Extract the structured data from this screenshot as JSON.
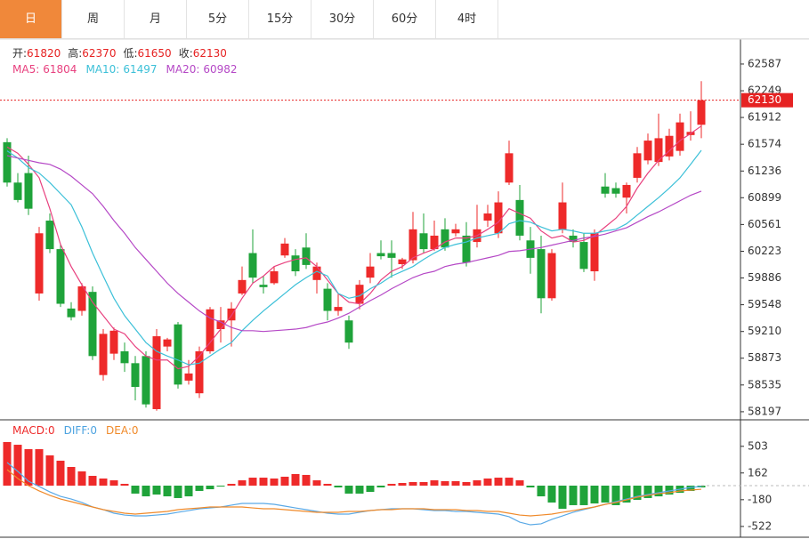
{
  "tabs": [
    "日",
    "周",
    "月",
    "5分",
    "15分",
    "30分",
    "60分",
    "4时"
  ],
  "active_tab": 0,
  "chart_data": [
    {
      "type": "candlestick",
      "up_color": "#ee2a2a",
      "down_color": "#1fa33a",
      "ohlc_labels": [
        "开:",
        "高:",
        "低:",
        "收:"
      ],
      "open": [
        61600,
        61090,
        61210,
        59690,
        60610,
        60250,
        59500,
        59470,
        59710,
        58660,
        58930,
        58960,
        58810,
        58900,
        58230,
        59020,
        59300,
        58590,
        58430,
        58960,
        59240,
        59350,
        59690,
        60200,
        59800,
        59820,
        60170,
        60170,
        60270,
        59860,
        59750,
        59470,
        59350,
        59560,
        59890,
        60200,
        60200,
        60060,
        60110,
        60450,
        60250,
        60500,
        60450,
        60420,
        60340,
        60610,
        60450,
        61090,
        60870,
        60360,
        60250,
        59630,
        60500,
        60420,
        60340,
        59970,
        61040,
        61020,
        60900,
        61150,
        61370,
        61350,
        61420,
        61490,
        61690,
        61820
      ],
      "high": [
        61650,
        61210,
        61430,
        60530,
        60700,
        60310,
        59580,
        59820,
        59780,
        59240,
        59260,
        59070,
        58900,
        58960,
        59240,
        59130,
        59330,
        58850,
        59020,
        59520,
        59520,
        59580,
        60030,
        60500,
        59910,
        60030,
        60390,
        60250,
        60450,
        60080,
        59820,
        59690,
        59410,
        59860,
        60200,
        60360,
        60360,
        60140,
        60720,
        60700,
        60610,
        60640,
        60570,
        60590,
        60810,
        60810,
        60980,
        61620,
        61060,
        60530,
        60420,
        60250,
        61090,
        60500,
        60450,
        60500,
        61210,
        61090,
        61090,
        61540,
        61710,
        61960,
        61770,
        61960,
        61990,
        62370
      ],
      "low": [
        61040,
        60840,
        60680,
        59600,
        60200,
        59520,
        59350,
        59410,
        58850,
        58590,
        58850,
        58700,
        58340,
        58250,
        58210,
        58960,
        58490,
        58540,
        58370,
        58930,
        59070,
        59020,
        59670,
        59820,
        59690,
        59800,
        60140,
        59910,
        60000,
        59690,
        59350,
        59410,
        58990,
        59490,
        59820,
        60120,
        59890,
        60000,
        60070,
        60200,
        60230,
        60230,
        60410,
        60030,
        60270,
        60530,
        60390,
        61060,
        60360,
        59940,
        59440,
        59600,
        60450,
        60270,
        59960,
        59850,
        60900,
        60900,
        60700,
        61090,
        61320,
        61300,
        61370,
        61430,
        61620,
        61650
      ],
      "close": [
        61090,
        60870,
        60760,
        60450,
        60250,
        59560,
        59390,
        59780,
        58900,
        59180,
        59220,
        58810,
        58510,
        58290,
        59150,
        59110,
        58540,
        58680,
        58960,
        59490,
        59350,
        59500,
        59860,
        59890,
        59770,
        59970,
        60320,
        59970,
        60050,
        60030,
        59470,
        59520,
        59070,
        59800,
        60030,
        60160,
        60140,
        60120,
        60500,
        60250,
        60420,
        60270,
        60500,
        60080,
        60500,
        60700,
        60840,
        61460,
        60420,
        60140,
        59630,
        60200,
        60840,
        60340,
        60000,
        60450,
        60950,
        60950,
        61060,
        61460,
        61620,
        61650,
        61680,
        61850,
        61730,
        62130
      ],
      "series": [
        {
          "name": "MA5:",
          "color": "#e8417f",
          "values": [
            61540,
            61460,
            61320,
            61150,
            60760,
            60310,
            60030,
            59800,
            59580,
            59410,
            59240,
            59180,
            59020,
            58900,
            58850,
            58850,
            58740,
            58770,
            58900,
            59070,
            59240,
            59410,
            59630,
            59820,
            59910,
            60030,
            60080,
            60120,
            60140,
            60030,
            59860,
            59690,
            59580,
            59560,
            59690,
            59860,
            59970,
            60030,
            60140,
            60200,
            60250,
            60340,
            60390,
            60390,
            60420,
            60500,
            60590,
            60760,
            60700,
            60640,
            60480,
            60390,
            60420,
            60340,
            60360,
            60420,
            60530,
            60640,
            60790,
            61020,
            61210,
            61370,
            61490,
            61620,
            61710,
            61804
          ]
        },
        {
          "name": "MA10:",
          "color": "#3cc0d8",
          "values": [
            61490,
            61400,
            61280,
            61210,
            61090,
            60950,
            60810,
            60530,
            60200,
            59910,
            59630,
            59410,
            59240,
            59070,
            58960,
            58900,
            58850,
            58790,
            58810,
            58900,
            58990,
            59070,
            59220,
            59350,
            59470,
            59580,
            59690,
            59800,
            59890,
            59970,
            59910,
            59690,
            59630,
            59660,
            59750,
            59820,
            59910,
            59970,
            60030,
            60120,
            60200,
            60270,
            60310,
            60340,
            60390,
            60420,
            60450,
            60570,
            60610,
            60590,
            60530,
            60480,
            60500,
            60480,
            60450,
            60450,
            60480,
            60500,
            60570,
            60680,
            60790,
            60900,
            61020,
            61150,
            61320,
            61497
          ]
        },
        {
          "name": "MA20:",
          "color": "#b548c6",
          "values": [
            61430,
            61400,
            61370,
            61340,
            61320,
            61260,
            61170,
            61060,
            60950,
            60790,
            60610,
            60450,
            60270,
            60120,
            59970,
            59820,
            59690,
            59580,
            59470,
            59380,
            59330,
            59260,
            59220,
            59220,
            59210,
            59220,
            59230,
            59240,
            59260,
            59300,
            59330,
            59380,
            59440,
            59520,
            59600,
            59670,
            59750,
            59820,
            59890,
            59940,
            59970,
            60030,
            60060,
            60080,
            60110,
            60140,
            60170,
            60220,
            60230,
            60250,
            60270,
            60300,
            60330,
            60360,
            60390,
            60410,
            60440,
            60480,
            60520,
            60590,
            60660,
            60720,
            60790,
            60860,
            60930,
            60982
          ]
        }
      ],
      "ylim": [
        58095,
        62901
      ],
      "yticks": [
        62587,
        62249,
        61912,
        61574,
        61236,
        60899,
        60561,
        60223,
        59886,
        59548,
        59210,
        58873,
        58535,
        58197
      ],
      "price_line": true,
      "price_line_color": "#e62222"
    },
    {
      "type": "macd",
      "up_color": "#ee2a2a",
      "down_color": "#1fa33a",
      "values": [
        558,
        523,
        467,
        467,
        387,
        319,
        239,
        182,
        125,
        91,
        68,
        23,
        -102,
        -137,
        -114,
        -137,
        -159,
        -137,
        -68,
        -46,
        -10,
        23,
        68,
        102,
        102,
        91,
        114,
        148,
        137,
        68,
        23,
        -23,
        -102,
        -102,
        -80,
        -23,
        23,
        34,
        46,
        46,
        68,
        57,
        57,
        46,
        68,
        91,
        102,
        102,
        68,
        -23,
        -137,
        -216,
        -296,
        -250,
        -250,
        -228,
        -216,
        -250,
        -216,
        -182,
        -159,
        -137,
        -114,
        -91,
        -68,
        -23
      ],
      "legend": [
        {
          "label": "MACD:",
          "value": 0,
          "color": "#ee2a2a"
        },
        {
          "label": "DIFF:",
          "value": 0,
          "color": "#4da3e0"
        },
        {
          "label": "DEA:",
          "value": 0,
          "color": "#f08a2a"
        }
      ],
      "series": [
        {
          "name": "DIFF",
          "color": "#5aa9e6",
          "values": [
            296,
            182,
            57,
            -11,
            -80,
            -137,
            -171,
            -216,
            -273,
            -307,
            -353,
            -376,
            -387,
            -387,
            -376,
            -364,
            -341,
            -319,
            -296,
            -285,
            -273,
            -250,
            -228,
            -228,
            -228,
            -239,
            -262,
            -285,
            -307,
            -330,
            -353,
            -364,
            -364,
            -341,
            -319,
            -307,
            -296,
            -296,
            -296,
            -307,
            -319,
            -319,
            -330,
            -330,
            -341,
            -353,
            -364,
            -398,
            -467,
            -501,
            -489,
            -432,
            -387,
            -341,
            -307,
            -273,
            -239,
            -205,
            -171,
            -137,
            -114,
            -91,
            -68,
            -46,
            -23,
            -11
          ]
        },
        {
          "name": "DEA",
          "color": "#f08a2a",
          "values": [
            205,
            91,
            0,
            -68,
            -125,
            -171,
            -205,
            -239,
            -273,
            -307,
            -330,
            -353,
            -364,
            -353,
            -341,
            -330,
            -307,
            -296,
            -285,
            -273,
            -273,
            -273,
            -273,
            -285,
            -296,
            -296,
            -307,
            -319,
            -330,
            -341,
            -341,
            -341,
            -330,
            -330,
            -319,
            -307,
            -307,
            -296,
            -296,
            -296,
            -307,
            -307,
            -307,
            -319,
            -319,
            -330,
            -330,
            -353,
            -376,
            -387,
            -376,
            -364,
            -341,
            -319,
            -296,
            -273,
            -239,
            -216,
            -182,
            -148,
            -125,
            -102,
            -91,
            -68,
            -57,
            -46
          ]
        }
      ],
      "ylim": [
        -660,
        842
      ],
      "yticks": [
        503,
        162,
        -180,
        -522
      ]
    }
  ]
}
